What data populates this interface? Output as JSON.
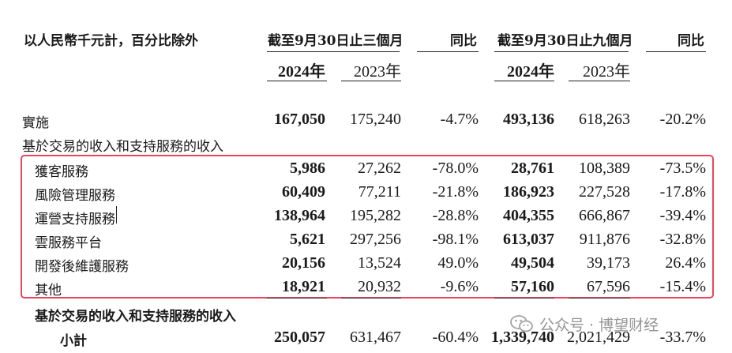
{
  "header": {
    "unit_label": "以人民幣千元計，百分比除外",
    "three_months": "截至9月30日止三個月",
    "nine_months": "截至9月30日止九個月",
    "yoy_1": "同比",
    "yoy_2": "同比",
    "y2024_a": "2024年",
    "y2023_a": "2023年",
    "y2024_b": "2024年",
    "y2023_b": "2023年"
  },
  "rows": [
    {
      "label": "實施",
      "q24": "167,050",
      "q23": "175,240",
      "qyoy": "-4.7%",
      "n24": "493,136",
      "n23": "618,263",
      "nyoy": "-20.2%"
    },
    {
      "label": "基於交易的收入和支持服務的收入"
    },
    {
      "label": "獲客服務",
      "q24": "5,986",
      "q23": "27,262",
      "qyoy": "-78.0%",
      "n24": "28,761",
      "n23": "108,389",
      "nyoy": "-73.5%"
    },
    {
      "label": "風險管理服務",
      "q24": "60,409",
      "q23": "77,211",
      "qyoy": "-21.8%",
      "n24": "186,923",
      "n23": "227,528",
      "nyoy": "-17.8%"
    },
    {
      "label": "運營支持服務",
      "q24": "138,964",
      "q23": "195,282",
      "qyoy": "-28.8%",
      "n24": "404,355",
      "n23": "666,867",
      "nyoy": "-39.4%"
    },
    {
      "label": "雲服務平台",
      "q24": "5,621",
      "q23": "297,256",
      "qyoy": "-98.1%",
      "n24": "613,037",
      "n23": "911,876",
      "nyoy": "-32.8%"
    },
    {
      "label": "開發後維護服務",
      "q24": "20,156",
      "q23": "13,524",
      "qyoy": "49.0%",
      "n24": "49,504",
      "n23": "39,173",
      "nyoy": "26.4%"
    },
    {
      "label": "其他",
      "q24": "18,921",
      "q23": "20,932",
      "qyoy": "-9.6%",
      "n24": "57,160",
      "n23": "67,596",
      "nyoy": "-15.4%"
    },
    {
      "label": "基於交易的收入和支持服務的收入"
    },
    {
      "label": "小計",
      "q24": "250,057",
      "q23": "631,467",
      "qyoy": "-60.4%",
      "n24": "1,339,740",
      "n23": "2,021,429",
      "nyoy": "-33.7%"
    }
  ],
  "watermark": {
    "text": "公众号 · 博望财经",
    "icon": "wechat-icon"
  },
  "colors": {
    "highlight_border": "#e8465e"
  }
}
